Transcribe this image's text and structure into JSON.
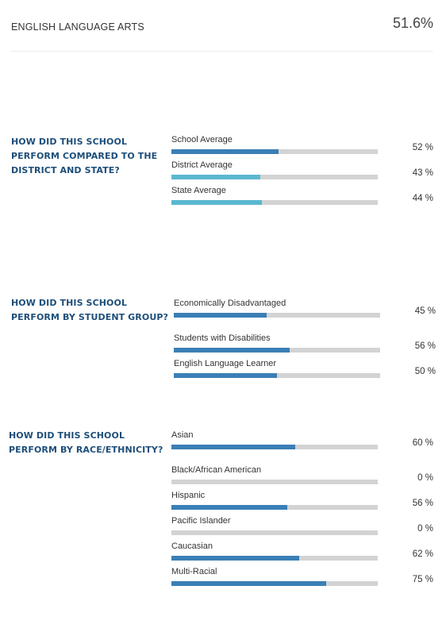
{
  "header": {
    "title": "ENGLISH LANGUAGE ARTS",
    "value": "51.6%"
  },
  "colors": {
    "dark_bar": "#3a7fb5",
    "light_bar": "#5bb8d0",
    "track": "#d3d3d3",
    "question": "#1e4e79"
  },
  "chart_data": [
    {
      "type": "bar",
      "question": "HOW DID THIS SCHOOL PERFORM COMPARED TO THE DISTRICT AND STATE?",
      "categories": [
        "School Average",
        "District Average",
        "State Average"
      ],
      "values": [
        52,
        43,
        44
      ],
      "value_labels": [
        "52 %",
        "43 %",
        "44 %"
      ],
      "bar_colors": [
        "#3a7fb5",
        "#5bb8d0",
        "#5bb8d0"
      ],
      "ylim": [
        0,
        100
      ]
    },
    {
      "type": "bar",
      "question": "HOW DID THIS SCHOOL PERFORM BY STUDENT GROUP?",
      "categories": [
        "Economically Disadvantaged",
        "Students with Disabilities",
        "English Language Learner"
      ],
      "values": [
        45,
        56,
        50
      ],
      "value_labels": [
        "45 %",
        "56 %",
        "50 %"
      ],
      "bar_colors": [
        "#3a7fb5",
        "#3a7fb5",
        "#3a7fb5"
      ],
      "ylim": [
        0,
        100
      ]
    },
    {
      "type": "bar",
      "question": "HOW DID THIS SCHOOL PERFORM BY RACE/ETHNICITY?",
      "categories": [
        "Asian",
        "Black/African American",
        "Hispanic",
        "Pacific Islander",
        "Caucasian",
        "Multi-Racial"
      ],
      "values": [
        60,
        0,
        56,
        0,
        62,
        75
      ],
      "value_labels": [
        "60 %",
        "0 %",
        "56 %",
        "0 %",
        "62 %",
        "75 %"
      ],
      "bar_colors": [
        "#3a7fb5",
        "#3a7fb5",
        "#3a7fb5",
        "#3a7fb5",
        "#3a7fb5",
        "#3a7fb5"
      ],
      "ylim": [
        0,
        100
      ]
    }
  ]
}
